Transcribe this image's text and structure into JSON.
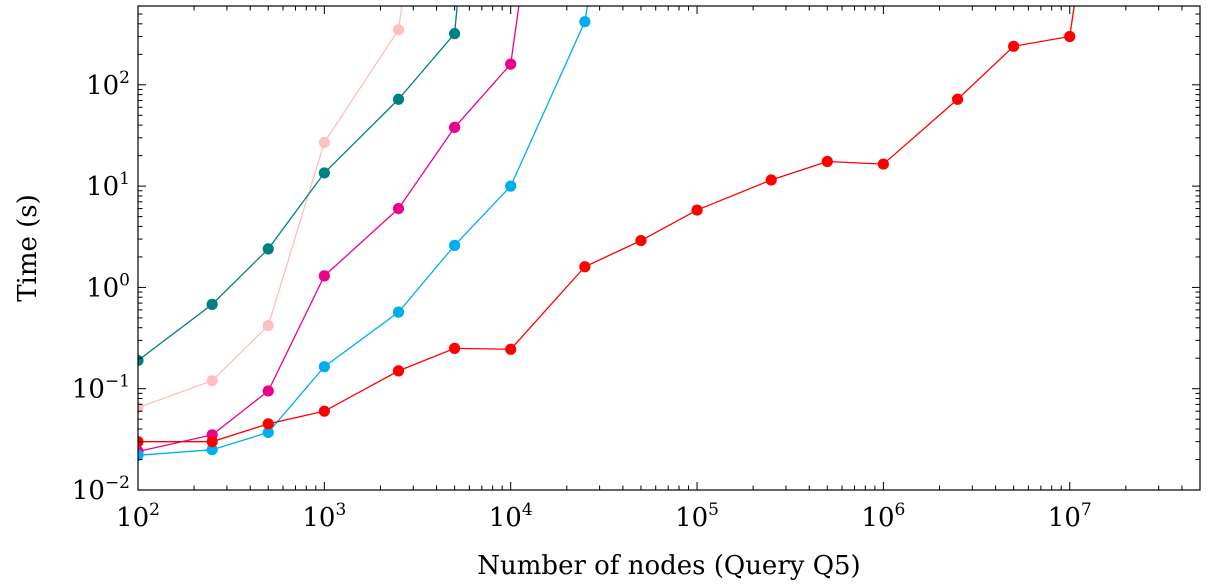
{
  "chart_data": {
    "type": "line",
    "xlabel": "Number of nodes (Query Q5)",
    "ylabel": "Time (s)",
    "x_scale": "log",
    "y_scale": "log",
    "xlim": [
      100,
      50000000
    ],
    "ylim": [
      0.01,
      600
    ],
    "x_ticks": [
      {
        "base": "10",
        "exp": "2",
        "value": 100
      },
      {
        "base": "10",
        "exp": "3",
        "value": 1000
      },
      {
        "base": "10",
        "exp": "4",
        "value": 10000
      },
      {
        "base": "10",
        "exp": "5",
        "value": 100000
      },
      {
        "base": "10",
        "exp": "6",
        "value": 1000000
      },
      {
        "base": "10",
        "exp": "7",
        "value": 10000000
      }
    ],
    "y_ticks": [
      {
        "base": "10",
        "exp": "−2",
        "value": 0.01
      },
      {
        "base": "10",
        "exp": "−1",
        "value": 0.1
      },
      {
        "base": "10",
        "exp": "0",
        "value": 1
      },
      {
        "base": "10",
        "exp": "1",
        "value": 10
      },
      {
        "base": "10",
        "exp": "2",
        "value": 100
      }
    ],
    "grid": false,
    "legend": "none",
    "series": [
      {
        "color": "#ffbfbf",
        "x": [
          100,
          250,
          500,
          1000,
          2500,
          2700
        ],
        "y": [
          0.065,
          0.12,
          0.42,
          27,
          350,
          1000
        ]
      },
      {
        "color": "#008080",
        "x": [
          100,
          250,
          500,
          1000,
          2500,
          5000,
          5300
        ],
        "y": [
          0.19,
          0.68,
          2.4,
          13.5,
          72,
          320,
          1000
        ]
      },
      {
        "color": "#ec008c",
        "x": [
          100,
          250,
          500,
          1000,
          2500,
          5000,
          10000,
          11500
        ],
        "y": [
          0.024,
          0.035,
          0.095,
          1.3,
          6,
          38,
          160,
          1000
        ]
      },
      {
        "color": "#00aeef",
        "x": [
          100,
          250,
          500,
          1000,
          2500,
          5000,
          10000,
          25000,
          27000
        ],
        "y": [
          0.022,
          0.025,
          0.037,
          0.165,
          0.57,
          2.6,
          10,
          420,
          1000
        ]
      },
      {
        "color": "#ff0000",
        "x": [
          100,
          250,
          500,
          1000,
          2500,
          5000,
          10000,
          25000,
          50000,
          100000,
          250000,
          500000,
          1000000,
          2500000,
          5000000,
          10000000,
          11000000
        ],
        "y": [
          0.03,
          0.03,
          0.045,
          0.06,
          0.15,
          0.25,
          0.245,
          1.6,
          2.9,
          5.8,
          11.5,
          17.5,
          16.5,
          72,
          240,
          300,
          1000
        ]
      }
    ]
  }
}
